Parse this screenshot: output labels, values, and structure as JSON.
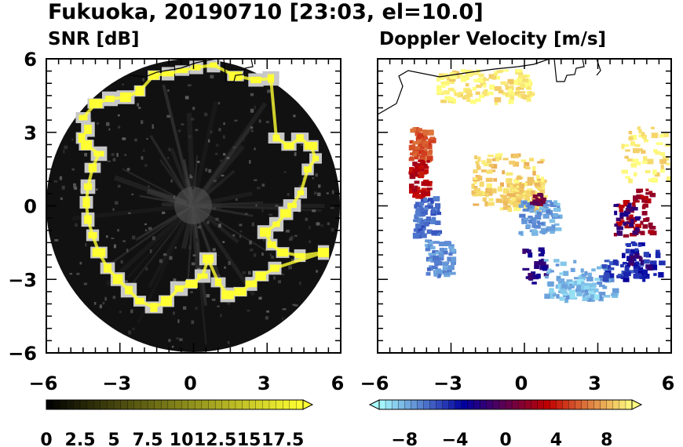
{
  "figure_title": "Fukuoka, 20190710 [23:03, el=10.0]",
  "chart_data": [
    {
      "type": "heatmap",
      "title": "SNR [dB]",
      "xlim": [
        -6,
        6
      ],
      "ylim": [
        -6,
        6
      ],
      "xticks": [
        "−6",
        "−3",
        "0",
        "3",
        "6"
      ],
      "yticks": [
        "6",
        "3",
        "0",
        "−3",
        "−6"
      ],
      "colorbar": {
        "min": 0,
        "max": 19,
        "step": 0.5,
        "extend": "max",
        "ticks": [
          "0",
          "2.5",
          "5",
          "7.5",
          "10",
          "12.5",
          "15",
          "17.5"
        ],
        "colors": [
          "#000000",
          "#ffff33"
        ]
      },
      "echo_ring_radius": 5.5
    },
    {
      "type": "heatmap",
      "title": "Doppler Velocity [m/s]",
      "xlim": [
        -6,
        6
      ],
      "ylim": [
        -6,
        6
      ],
      "xticks": [
        "−6",
        "−3",
        "0",
        "3",
        "6"
      ],
      "colorbar": {
        "min": -10,
        "max": 10,
        "step": 0.5,
        "extend": "both",
        "ticks": [
          "−8",
          "−4",
          "0",
          "4",
          "8"
        ],
        "colors": [
          "#aaffff",
          "#0000a0",
          "#c00000",
          "#ffff80"
        ]
      }
    }
  ]
}
